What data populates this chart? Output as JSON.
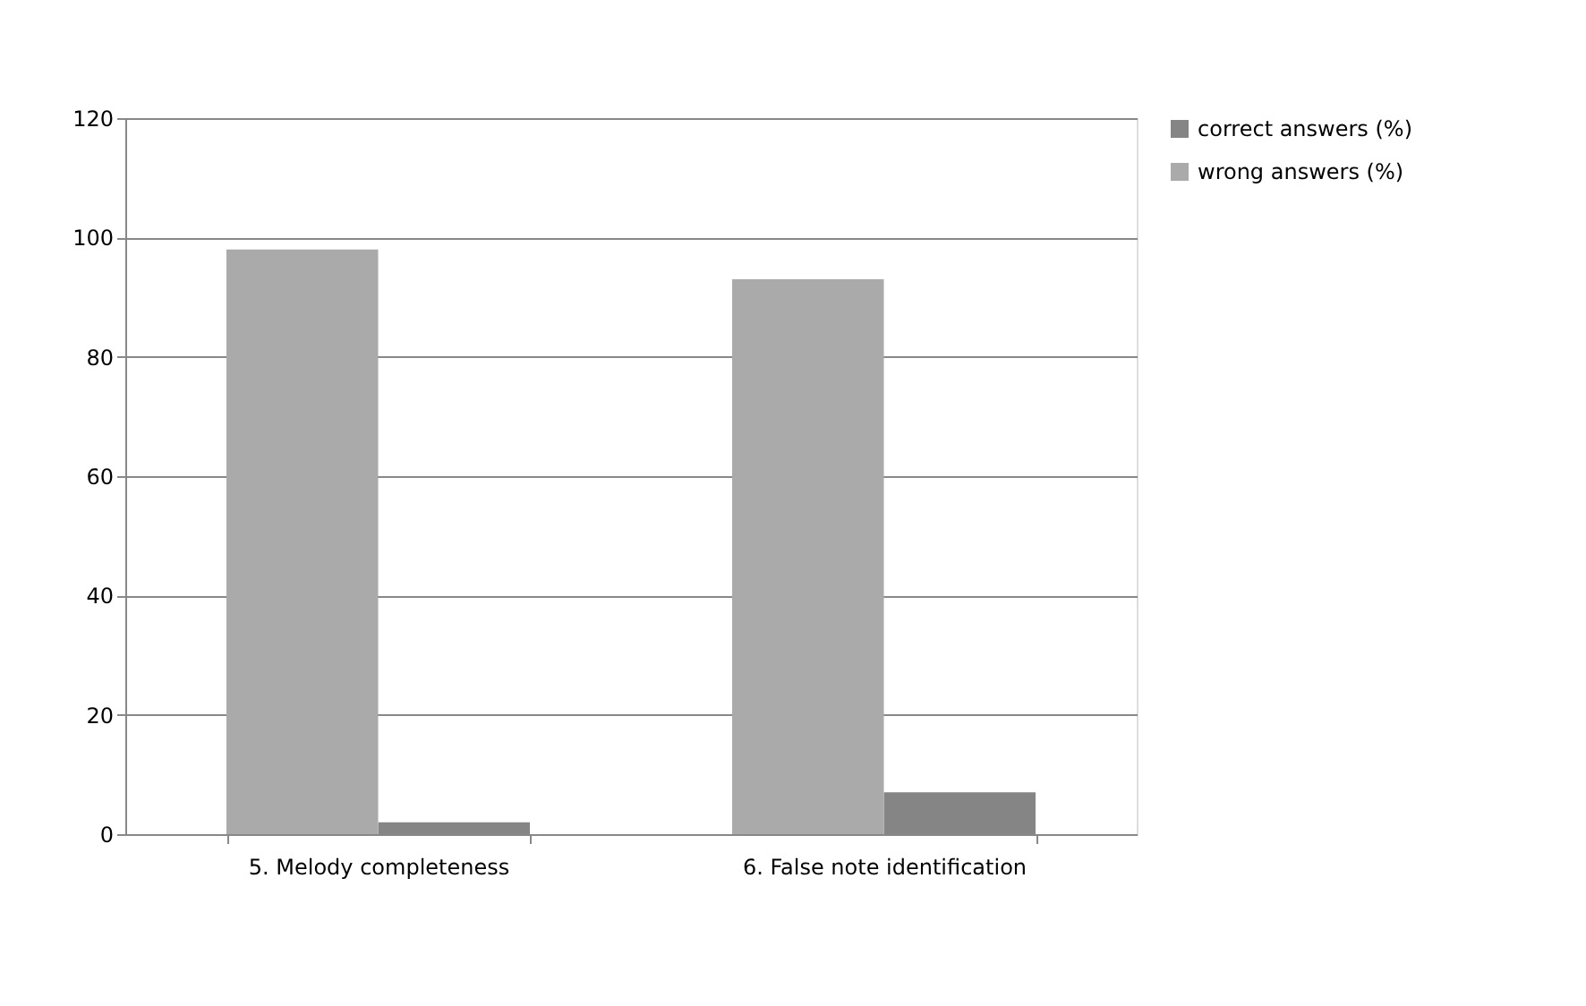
{
  "chart_data": {
    "type": "bar",
    "categories": [
      "5. Melody completeness",
      "6. False note identification"
    ],
    "series": [
      {
        "name": "correct answers (%)",
        "color": "#858585",
        "values": [
          2,
          7
        ]
      },
      {
        "name": "wrong answers (%)",
        "color": "#aaaaaa",
        "values": [
          98,
          93
        ]
      }
    ],
    "ylim": [
      0,
      120
    ],
    "yticks": [
      0,
      20,
      40,
      60,
      80,
      100,
      120
    ],
    "grid": "y",
    "legend": "right"
  }
}
